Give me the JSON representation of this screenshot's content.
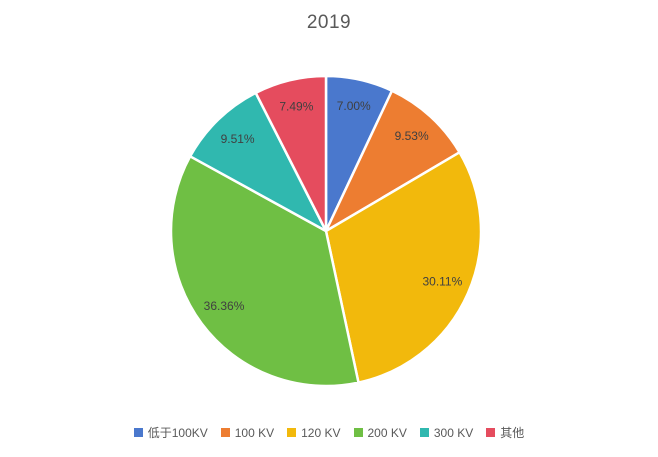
{
  "chart_data": {
    "type": "pie",
    "title": "2019",
    "categories": [
      "低于100KV",
      "100 KV",
      "120 KV",
      "200 KV",
      "300 KV",
      "其他"
    ],
    "values": [
      7.0,
      9.53,
      30.11,
      36.36,
      9.51,
      7.49
    ],
    "labels": [
      "7.00%",
      "9.53%",
      "30.11%",
      "36.36%",
      "9.51%",
      "7.49%"
    ],
    "colors": [
      "#4A78CD",
      "#ED7D31",
      "#F2B90C",
      "#6FBF44",
      "#30B8AF",
      "#E54C5E"
    ],
    "start_angle_deg": 0,
    "direction": "clockwise",
    "legend_position": "bottom",
    "slice_border_color": "#ffffff",
    "label_color": "#404040",
    "title_color": "#595959",
    "legend_text_color": "#595959"
  }
}
